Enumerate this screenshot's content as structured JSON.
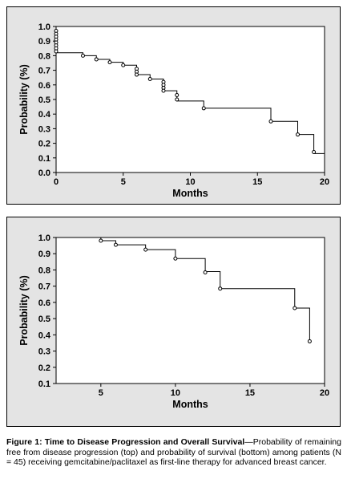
{
  "chart_data": [
    {
      "type": "line",
      "subtype": "kaplan-meier step",
      "xlabel": "Months",
      "ylabel": "Probability (%)",
      "xlim": [
        0,
        20
      ],
      "ylim": [
        0,
        1.0
      ],
      "xticks": [
        0,
        5,
        10,
        15,
        20
      ],
      "yticks": [
        0.0,
        0.1,
        0.2,
        0.3,
        0.4,
        0.5,
        0.6,
        0.7,
        0.8,
        0.9,
        1.0
      ],
      "ytick_labels": [
        "0.0",
        "0.1",
        "0.2",
        "0.3",
        "0.4",
        "0.5",
        "0.6",
        "0.7",
        "0.8",
        "0.9",
        "1.0"
      ],
      "grid": false,
      "steps": [
        {
          "x": 0,
          "y": 1.0
        },
        {
          "x": 0,
          "y": 0.82
        },
        {
          "x": 2,
          "y": 0.8
        },
        {
          "x": 3,
          "y": 0.775
        },
        {
          "x": 4,
          "y": 0.755
        },
        {
          "x": 5,
          "y": 0.735
        },
        {
          "x": 6,
          "y": 0.67
        },
        {
          "x": 7,
          "y": 0.64
        },
        {
          "x": 8,
          "y": 0.56
        },
        {
          "x": 9,
          "y": 0.49
        },
        {
          "x": 11,
          "y": 0.44
        },
        {
          "x": 16,
          "y": 0.35
        },
        {
          "x": 18,
          "y": 0.26
        },
        {
          "x": 19.2,
          "y": 0.13
        },
        {
          "x": 20,
          "y": 0.13
        }
      ],
      "censored": [
        {
          "x": 0,
          "y": 0.97
        },
        {
          "x": 0,
          "y": 0.95
        },
        {
          "x": 0,
          "y": 0.93
        },
        {
          "x": 0,
          "y": 0.91
        },
        {
          "x": 0,
          "y": 0.89
        },
        {
          "x": 0,
          "y": 0.87
        },
        {
          "x": 0,
          "y": 0.85
        },
        {
          "x": 0,
          "y": 0.83
        },
        {
          "x": 2,
          "y": 0.8
        },
        {
          "x": 3,
          "y": 0.775
        },
        {
          "x": 4,
          "y": 0.755
        },
        {
          "x": 5,
          "y": 0.735
        },
        {
          "x": 6,
          "y": 0.71
        },
        {
          "x": 6,
          "y": 0.69
        },
        {
          "x": 6,
          "y": 0.67
        },
        {
          "x": 7,
          "y": 0.64
        },
        {
          "x": 8,
          "y": 0.62
        },
        {
          "x": 8,
          "y": 0.6
        },
        {
          "x": 8,
          "y": 0.58
        },
        {
          "x": 8,
          "y": 0.56
        },
        {
          "x": 9,
          "y": 0.53
        },
        {
          "x": 9,
          "y": 0.5
        },
        {
          "x": 11,
          "y": 0.44
        },
        {
          "x": 16,
          "y": 0.35
        },
        {
          "x": 18,
          "y": 0.26
        },
        {
          "x": 19.2,
          "y": 0.14
        }
      ]
    },
    {
      "type": "line",
      "subtype": "kaplan-meier step",
      "xlabel": "Months",
      "ylabel": "Probability (%)",
      "xlim": [
        2,
        20
      ],
      "ylim": [
        0.1,
        1.0
      ],
      "xticks": [
        5,
        10,
        15,
        20
      ],
      "yticks": [
        0.1,
        0.2,
        0.3,
        0.4,
        0.5,
        0.6,
        0.7,
        0.8,
        0.9,
        1.0
      ],
      "ytick_labels": [
        "0.1",
        "0.2",
        "0.3",
        "0.4",
        "0.5",
        "0.6",
        "0.7",
        "0.8",
        "0.9",
        "1.0"
      ],
      "grid": false,
      "steps": [
        {
          "x": 2,
          "y": 1.0
        },
        {
          "x": 5,
          "y": 0.98
        },
        {
          "x": 6,
          "y": 0.955
        },
        {
          "x": 8,
          "y": 0.925
        },
        {
          "x": 10,
          "y": 0.87
        },
        {
          "x": 12,
          "y": 0.79
        },
        {
          "x": 13,
          "y": 0.685
        },
        {
          "x": 18,
          "y": 0.565
        },
        {
          "x": 19,
          "y": 0.36
        }
      ],
      "censored": [
        {
          "x": 5,
          "y": 0.98
        },
        {
          "x": 6,
          "y": 0.955
        },
        {
          "x": 8,
          "y": 0.925
        },
        {
          "x": 10,
          "y": 0.87
        },
        {
          "x": 12,
          "y": 0.785
        },
        {
          "x": 13,
          "y": 0.685
        },
        {
          "x": 18,
          "y": 0.565
        },
        {
          "x": 19,
          "y": 0.36
        }
      ]
    }
  ],
  "caption": {
    "bold": "Figure 1: Time to Disease Progression and Overall Survival",
    "text": "—Probability of remaining free from disease progression (top) and probability of survival (bottom) among patients (N = 45) receiving gemcitabine/paclitaxel as first-line therapy for advanced breast cancer."
  }
}
